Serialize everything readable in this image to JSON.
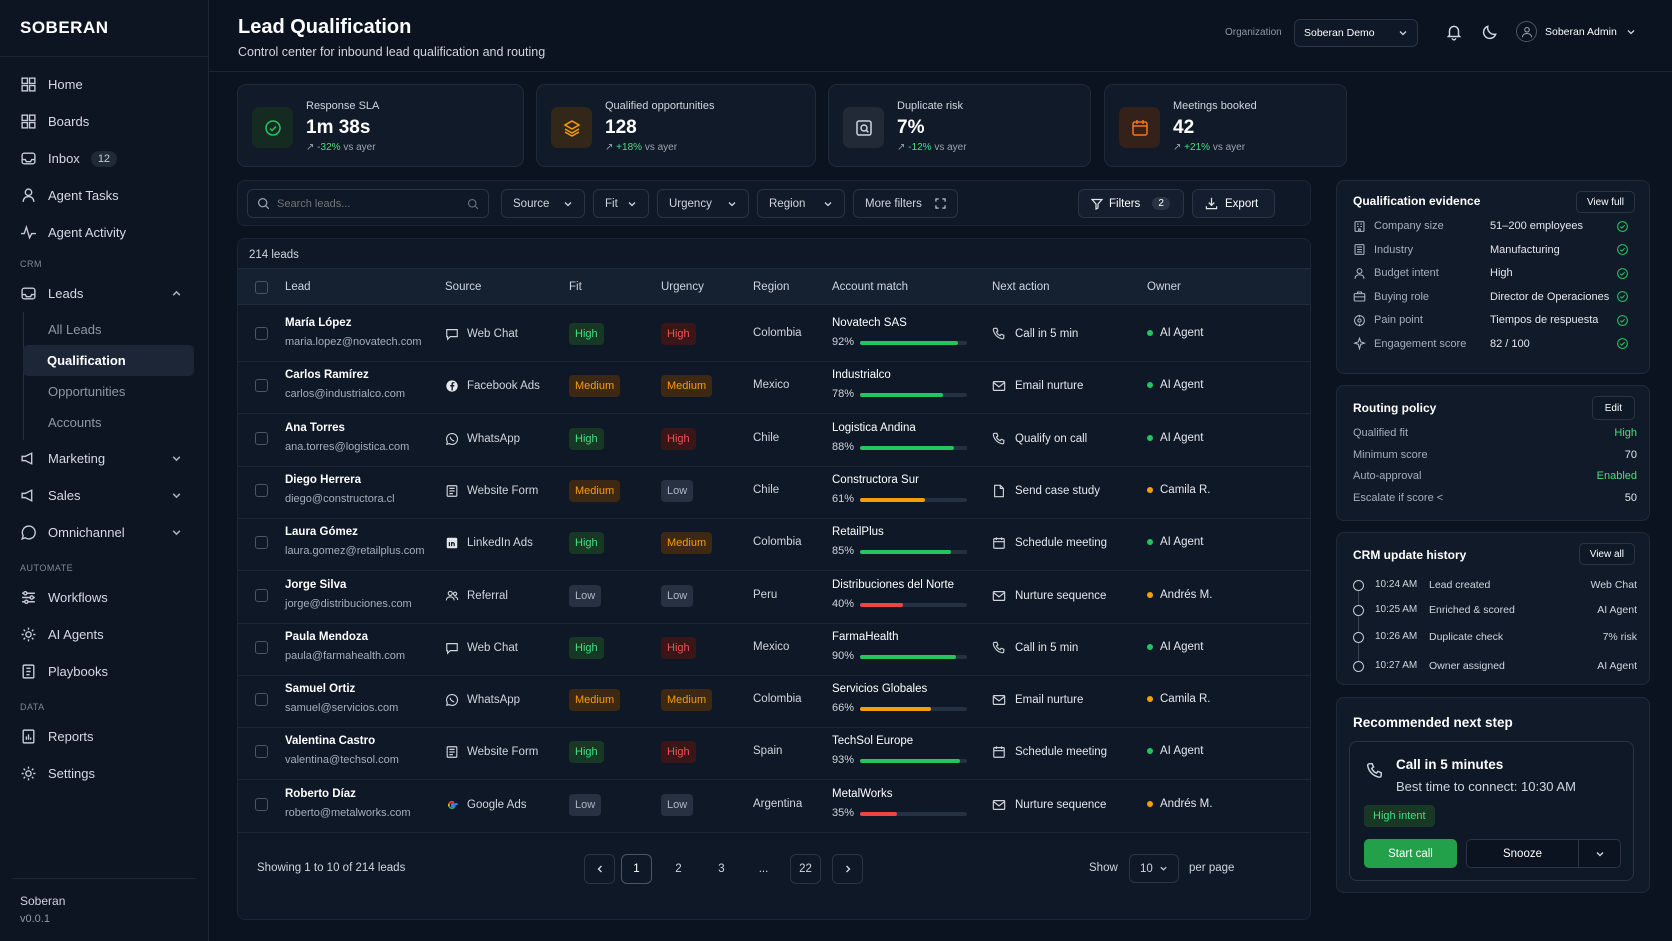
{
  "brand": {
    "name": "SOBERAN"
  },
  "sidebar": {
    "items": [
      {
        "label": "Home"
      },
      {
        "label": "Boards"
      },
      {
        "label": "Inbox",
        "badge": "12"
      },
      {
        "label": "Agent Tasks"
      },
      {
        "label": "Agent Activity"
      }
    ],
    "crm_section": "CRM",
    "leads_label": "Leads",
    "leads_sub": [
      "All Leads",
      "Qualification",
      "Opportunities",
      "Accounts"
    ],
    "groups": [
      {
        "label": "Marketing"
      },
      {
        "label": "Sales"
      },
      {
        "label": "Omnichannel"
      }
    ],
    "automate_section": "AUTOMATE",
    "automate": [
      {
        "label": "Workflows"
      },
      {
        "label": "AI Agents"
      },
      {
        "label": "Playbooks"
      }
    ],
    "data_section": "DATA",
    "data_items": [
      {
        "label": "Reports"
      },
      {
        "label": "Settings"
      }
    ],
    "footer": {
      "name": "Soberan",
      "version": "v0.0.1"
    }
  },
  "header": {
    "title": "Lead Qualification",
    "subtitle": "Control center for inbound lead qualification and routing",
    "org_label": "Organization",
    "org_value": "Soberan Demo",
    "user": "Soberan Admin"
  },
  "kpis": [
    {
      "label": "Response SLA",
      "value": "1m 38s",
      "delta": "-32%",
      "delta_note": "vs ayer",
      "color": "#22c55e",
      "icon": "gauge-icon"
    },
    {
      "label": "Qualified opportunities",
      "value": "128",
      "delta": "+18%",
      "delta_note": "vs ayer",
      "color": "#f59e0b",
      "icon": "stack-icon"
    },
    {
      "label": "Duplicate risk",
      "value": "7%",
      "delta": "-12%",
      "delta_note": "vs ayer",
      "color": "#9ca3af",
      "icon": "search-doc-icon"
    },
    {
      "label": "Meetings booked",
      "value": "42",
      "delta": "+21%",
      "delta_note": "vs ayer",
      "color": "#f97316",
      "icon": "calendar-icon"
    }
  ],
  "toolbar": {
    "search_placeholder": "Search leads...",
    "source": "Source",
    "fit": "Fit",
    "urgency": "Urgency",
    "region": "Region",
    "more": "More filters",
    "filters": "Filters",
    "filters_count": "2",
    "export": "Export"
  },
  "table": {
    "count": "214 leads",
    "columns": [
      "Lead",
      "Source",
      "Fit",
      "Urgency",
      "Region",
      "Account match",
      "Next action",
      "Owner"
    ],
    "rows": [
      {
        "name": "María López",
        "email": "maria.lopez@novatech.com",
        "source": "Web Chat",
        "source_icon": "chat-icon",
        "fit": "High",
        "urgency": "High",
        "region": "Colombia",
        "account": "Novatech SAS",
        "match": "92%",
        "match_val": 0.92,
        "next": "Call in 5 min",
        "next_icon": "phone-icon",
        "owner": "AI Agent"
      },
      {
        "name": "Carlos Ramírez",
        "email": "carlos@industrialco.com",
        "source": "Facebook Ads",
        "source_icon": "facebook-icon",
        "fit": "Medium",
        "urgency": "Medium",
        "region": "Mexico",
        "account": "Industrialco",
        "match": "78%",
        "match_val": 0.78,
        "next": "Email nurture",
        "next_icon": "mail-icon",
        "owner": "AI Agent"
      },
      {
        "name": "Ana Torres",
        "email": "ana.torres@logistica.com",
        "source": "WhatsApp",
        "source_icon": "whatsapp-icon",
        "fit": "High",
        "urgency": "High",
        "region": "Chile",
        "account": "Logistica Andina",
        "match": "88%",
        "match_val": 0.88,
        "next": "Qualify on call",
        "next_icon": "phone-icon",
        "owner": "AI Agent"
      },
      {
        "name": "Diego Herrera",
        "email": "diego@constructora.cl",
        "source": "Website Form",
        "source_icon": "form-icon",
        "fit": "Medium",
        "urgency": "Low",
        "region": "Chile",
        "account": "Constructora Sur",
        "match": "61%",
        "match_val": 0.61,
        "next": "Send case study",
        "next_icon": "document-icon",
        "owner": "Camila R."
      },
      {
        "name": "Laura Gómez",
        "email": "laura.gomez@retailplus.com",
        "source": "LinkedIn Ads",
        "source_icon": "linkedin-icon",
        "fit": "High",
        "urgency": "Medium",
        "region": "Colombia",
        "account": "RetailPlus",
        "match": "85%",
        "match_val": 0.85,
        "next": "Schedule meeting",
        "next_icon": "calendar-icon",
        "owner": "AI Agent"
      },
      {
        "name": "Jorge Silva",
        "email": "jorge@distribuciones.com",
        "source": "Referral",
        "source_icon": "people-icon",
        "fit": "Low",
        "urgency": "Low",
        "region": "Peru",
        "account": "Distribuciones del Norte",
        "match": "40%",
        "match_val": 0.4,
        "next": "Nurture sequence",
        "next_icon": "mail-icon",
        "owner": "Andrés M."
      },
      {
        "name": "Paula Mendoza",
        "email": "paula@farmahealth.com",
        "source": "Web Chat",
        "source_icon": "chat-icon",
        "fit": "High",
        "urgency": "High",
        "region": "Mexico",
        "account": "FarmaHealth",
        "match": "90%",
        "match_val": 0.9,
        "next": "Call in 5 min",
        "next_icon": "phone-icon",
        "owner": "AI Agent"
      },
      {
        "name": "Samuel Ortiz",
        "email": "samuel@servicios.com",
        "source": "WhatsApp",
        "source_icon": "whatsapp-icon",
        "fit": "Medium",
        "urgency": "Medium",
        "region": "Colombia",
        "account": "Servicios Globales",
        "match": "66%",
        "match_val": 0.66,
        "next": "Email nurture",
        "next_icon": "mail-icon",
        "owner": "Camila R."
      },
      {
        "name": "Valentina Castro",
        "email": "valentina@techsol.com",
        "source": "Website Form",
        "source_icon": "form-icon",
        "fit": "High",
        "urgency": "High",
        "region": "Spain",
        "account": "TechSol Europe",
        "match": "93%",
        "match_val": 0.93,
        "next": "Schedule meeting",
        "next_icon": "calendar-icon",
        "owner": "AI Agent"
      },
      {
        "name": "Roberto Díaz",
        "email": "roberto@metalworks.com",
        "source": "Google Ads",
        "source_icon": "google-icon",
        "fit": "Low",
        "urgency": "Low",
        "region": "Argentina",
        "account": "MetalWorks",
        "match": "35%",
        "match_val": 0.35,
        "next": "Nurture sequence",
        "next_icon": "mail-icon",
        "owner": "Andrés M."
      }
    ],
    "showing": "Showing 1 to 10 of 214 leads",
    "pages": [
      "1",
      "2",
      "3",
      "...",
      "22"
    ],
    "show_label": "Show",
    "per_page": "10",
    "per_page_label": "per page"
  },
  "evidence": {
    "title": "Qualification evidence",
    "view": "View full",
    "items": [
      {
        "label": "Company size",
        "value": "51–200 employees",
        "icon": "building-icon"
      },
      {
        "label": "Industry",
        "value": "Manufacturing",
        "icon": "factory-icon"
      },
      {
        "label": "Budget intent",
        "value": "High",
        "icon": "person-icon"
      },
      {
        "label": "Buying role",
        "value": "Director de Operaciones",
        "icon": "briefcase-icon"
      },
      {
        "label": "Pain point",
        "value": "Tiempos de respuesta",
        "icon": "target-icon"
      },
      {
        "label": "Engagement score",
        "value": "82 / 100",
        "icon": "sparkle-icon"
      }
    ]
  },
  "routing": {
    "title": "Routing policy",
    "edit": "Edit",
    "items": [
      {
        "label": "Qualified fit",
        "value": "High",
        "color": "#4ade80"
      },
      {
        "label": "Minimum score",
        "value": "70",
        "color": "#e5e7eb"
      },
      {
        "label": "Auto-approval",
        "value": "Enabled",
        "color": "#4ade80"
      },
      {
        "label": "Escalate if score <",
        "value": "50",
        "color": "#e5e7eb"
      }
    ]
  },
  "history": {
    "title": "CRM update history",
    "view": "View all",
    "items": [
      {
        "time": "10:24 AM",
        "event": "Lead created",
        "source": "Web Chat"
      },
      {
        "time": "10:25 AM",
        "event": "Enriched & scored",
        "source": "AI Agent"
      },
      {
        "time": "10:26 AM",
        "event": "Duplicate check",
        "source": "7% risk"
      },
      {
        "time": "10:27 AM",
        "event": "Owner assigned",
        "source": "AI Agent"
      }
    ]
  },
  "recommend": {
    "title": "Recommended next step",
    "action": "Call in 5 minutes",
    "detail": "Best time to connect: 10:30 AM",
    "tag": "High intent",
    "start": "Start call",
    "snooze": "Snooze"
  },
  "colors": {
    "green": "#22c55e",
    "amber": "#f59e0b",
    "red": "#ef4444",
    "bg": "#0b1220"
  }
}
